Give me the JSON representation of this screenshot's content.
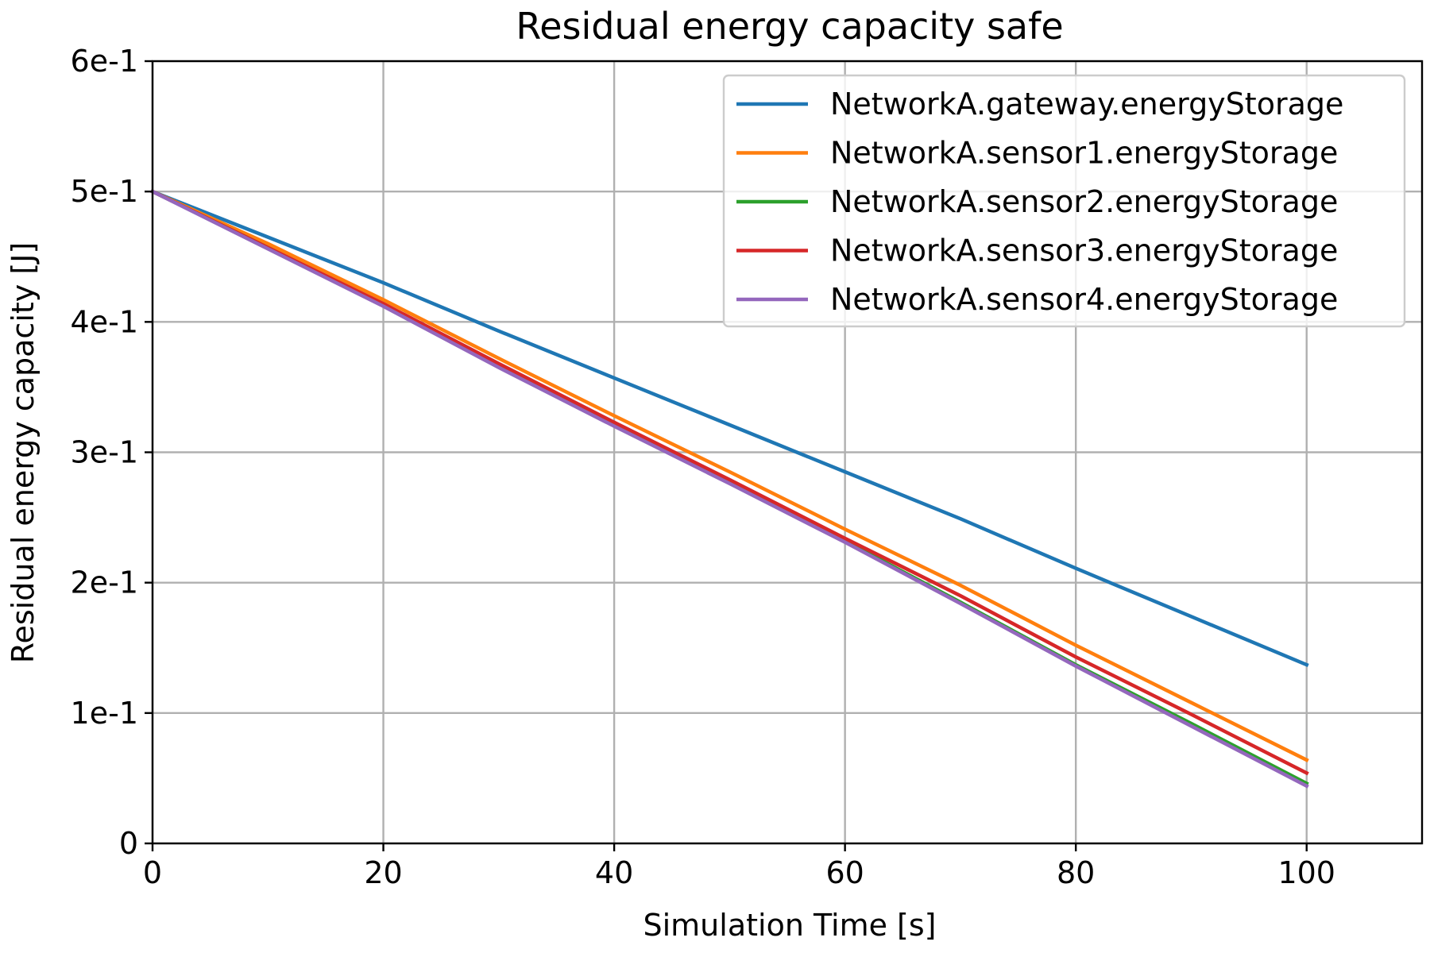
{
  "chart_data": {
    "type": "line",
    "title": "Residual energy capacity safe",
    "xlabel": "Simulation Time [s]",
    "ylabel": "Residual energy capacity [J]",
    "xlim": [
      0,
      110
    ],
    "ylim": [
      0,
      0.6
    ],
    "x_ticks": [
      0,
      20,
      40,
      60,
      80,
      100
    ],
    "x_tick_labels": [
      "0",
      "20",
      "40",
      "60",
      "80",
      "100"
    ],
    "y_ticks": [
      0,
      0.1,
      0.2,
      0.3,
      0.4,
      0.5,
      0.6
    ],
    "y_tick_labels": [
      "0",
      "1e-1",
      "2e-1",
      "3e-1",
      "4e-1",
      "5e-1",
      "6e-1"
    ],
    "grid": true,
    "legend_position": "top-right",
    "x": [
      0,
      10,
      20,
      30,
      40,
      50,
      60,
      70,
      80,
      90,
      100
    ],
    "series": [
      {
        "name": "NetworkA.gateway.energyStorage",
        "color": "#1f77b4",
        "values": [
          0.5,
          0.465,
          0.43,
          0.393,
          0.357,
          0.321,
          0.285,
          0.249,
          0.211,
          0.174,
          0.137
        ]
      },
      {
        "name": "NetworkA.sensor1.energyStorage",
        "color": "#ff7f0e",
        "values": [
          0.5,
          0.46,
          0.417,
          0.372,
          0.328,
          0.285,
          0.241,
          0.198,
          0.152,
          0.108,
          0.064
        ]
      },
      {
        "name": "NetworkA.sensor2.energyStorage",
        "color": "#2ca02c",
        "values": [
          0.5,
          0.457,
          0.413,
          0.366,
          0.321,
          0.277,
          0.232,
          0.185,
          0.137,
          0.092,
          0.046
        ]
      },
      {
        "name": "NetworkA.sensor3.energyStorage",
        "color": "#d62728",
        "values": [
          0.5,
          0.457,
          0.414,
          0.368,
          0.323,
          0.279,
          0.234,
          0.19,
          0.143,
          0.099,
          0.054
        ]
      },
      {
        "name": "NetworkA.sensor4.energyStorage",
        "color": "#9467bd",
        "values": [
          0.5,
          0.456,
          0.412,
          0.365,
          0.32,
          0.276,
          0.231,
          0.184,
          0.136,
          0.09,
          0.044
        ]
      }
    ]
  }
}
